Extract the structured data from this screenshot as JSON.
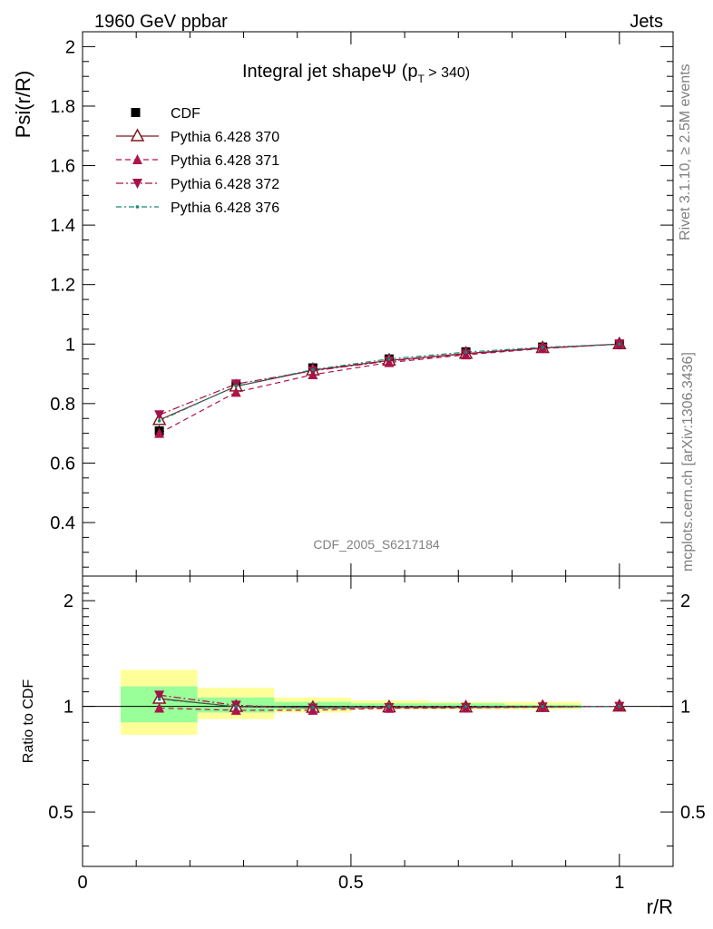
{
  "header": {
    "left": "1960 GeV ppbar",
    "right": "Jets"
  },
  "side_text": {
    "top": "Rivet 3.1.10, ≥ 2.5M events",
    "bottom": "mcplots.cern.ch [arXiv:1306.3436]"
  },
  "chart_data": {
    "type": "line",
    "title": "Integral jet shapeΨ (p",
    "title_sub": "T",
    "title_tail": " > 340)",
    "watermark": "CDF_2005_S6217184",
    "xlabel": "r/R",
    "ylabel": "Psi(r/R)",
    "ratio_ylabel": "Ratio to CDF",
    "xlim": [
      0,
      1.1
    ],
    "ylim": [
      0.22,
      2.05
    ],
    "ratio_ylim": [
      0.35,
      2.35
    ],
    "ratio_log": true,
    "x_ticks": [
      "0",
      "0.5",
      "1"
    ],
    "y_ticks": [
      "0.4",
      "0.6",
      "0.8",
      "1",
      "1.2",
      "1.4",
      "1.6",
      "1.8",
      "2"
    ],
    "ratio_ticks": [
      "0.5",
      "1",
      "2"
    ],
    "x": [
      0.143,
      0.286,
      0.429,
      0.571,
      0.714,
      0.857,
      1.0
    ],
    "bin_edges": [
      0.071,
      0.214,
      0.357,
      0.5,
      0.643,
      0.786,
      0.929,
      1.071
    ],
    "data": {
      "name": "CDF",
      "values": [
        0.708,
        0.86,
        0.92,
        0.95,
        0.974,
        0.99,
        1.0
      ],
      "ratio_band_inner": [
        [
          0.9,
          1.14
        ],
        [
          0.96,
          1.06
        ],
        [
          0.98,
          1.03
        ],
        [
          0.99,
          1.02
        ],
        [
          0.99,
          1.02
        ],
        [
          0.99,
          1.01
        ],
        [
          1.0,
          1.0
        ]
      ],
      "ratio_band_outer": [
        [
          0.83,
          1.27
        ],
        [
          0.92,
          1.13
        ],
        [
          0.96,
          1.06
        ],
        [
          0.98,
          1.04
        ],
        [
          0.98,
          1.03
        ],
        [
          0.98,
          1.03
        ],
        [
          1.0,
          1.0
        ]
      ]
    },
    "series": [
      {
        "name": "Pythia 6.428 370",
        "color": "#7f1a22",
        "dash": "",
        "marker": "triangle-open",
        "values": [
          0.745,
          0.858,
          0.912,
          0.945,
          0.968,
          0.987,
          1.0
        ]
      },
      {
        "name": "Pythia 6.428 371",
        "color": "#b0124a",
        "dash": "6,4",
        "marker": "triangle-up",
        "values": [
          0.7,
          0.838,
          0.897,
          0.938,
          0.964,
          0.985,
          1.0
        ]
      },
      {
        "name": "Pythia 6.428 372",
        "color": "#a3124a",
        "dash": "8,3,2,3",
        "marker": "triangle-down",
        "values": [
          0.762,
          0.866,
          0.91,
          0.943,
          0.967,
          0.986,
          1.0
        ]
      },
      {
        "name": "Pythia 6.428 376",
        "color": "#118a6e",
        "dash": "6,3,2,3",
        "marker": "dot",
        "values": [
          0.742,
          0.859,
          0.914,
          0.95,
          0.973,
          0.989,
          1.0
        ]
      }
    ],
    "legend_position": "top-left",
    "colors": {
      "band_inner": "#99ff99",
      "band_outer": "#ffff99",
      "data": "#000000",
      "side_text": "#7f7f7f"
    }
  }
}
